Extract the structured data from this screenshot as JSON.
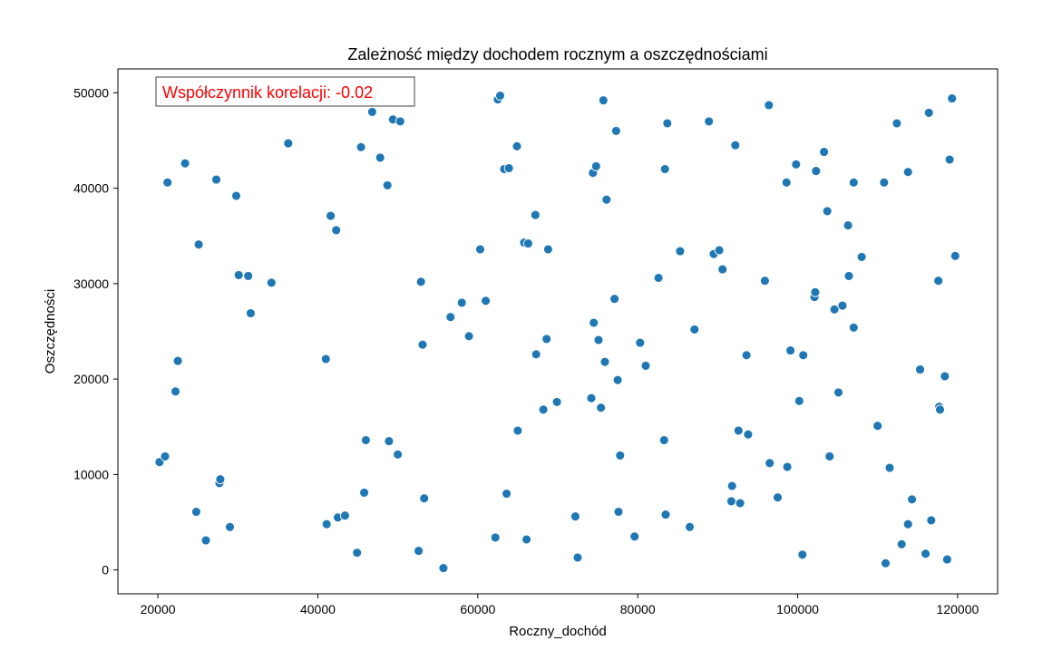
{
  "chart_data": {
    "type": "scatter",
    "title": "Zależność między dochodem rocznym a oszczędnościami",
    "xlabel": "Roczny_dochód",
    "ylabel": "Oszczędności",
    "xlim": [
      15000,
      125000
    ],
    "ylim": [
      -2500,
      52500
    ],
    "xticks": [
      20000,
      40000,
      60000,
      80000,
      100000,
      120000
    ],
    "yticks": [
      0,
      10000,
      20000,
      30000,
      40000,
      50000
    ],
    "grid": false,
    "annotation": {
      "text": "Współczynnik korelacji: -0.02",
      "color": "#ff0000"
    },
    "marker_color": "#1f77b4",
    "points": [
      [
        20200,
        11300
      ],
      [
        20900,
        11900
      ],
      [
        21200,
        40600
      ],
      [
        22200,
        18700
      ],
      [
        22500,
        21900
      ],
      [
        23400,
        42600
      ],
      [
        24800,
        6100
      ],
      [
        25100,
        34100
      ],
      [
        26000,
        3100
      ],
      [
        27300,
        40900
      ],
      [
        27700,
        9100
      ],
      [
        27800,
        9500
      ],
      [
        29000,
        4500
      ],
      [
        29800,
        39200
      ],
      [
        30100,
        30900
      ],
      [
        31300,
        30800
      ],
      [
        31600,
        26900
      ],
      [
        34200,
        30100
      ],
      [
        36300,
        44700
      ],
      [
        41000,
        22100
      ],
      [
        41100,
        4800
      ],
      [
        41600,
        37100
      ],
      [
        42300,
        35600
      ],
      [
        42500,
        5500
      ],
      [
        43400,
        5700
      ],
      [
        44900,
        1800
      ],
      [
        45400,
        44300
      ],
      [
        45800,
        8100
      ],
      [
        46000,
        13600
      ],
      [
        46800,
        48000
      ],
      [
        47800,
        43200
      ],
      [
        48700,
        40300
      ],
      [
        48900,
        13500
      ],
      [
        49400,
        47200
      ],
      [
        50000,
        12100
      ],
      [
        50300,
        47000
      ],
      [
        52600,
        2000
      ],
      [
        52900,
        30200
      ],
      [
        53100,
        23600
      ],
      [
        53300,
        7500
      ],
      [
        55700,
        200
      ],
      [
        56600,
        26500
      ],
      [
        58000,
        28000
      ],
      [
        58900,
        24500
      ],
      [
        60300,
        33600
      ],
      [
        61000,
        28200
      ],
      [
        62200,
        3400
      ],
      [
        62500,
        49300
      ],
      [
        62800,
        49700
      ],
      [
        63300,
        42000
      ],
      [
        63600,
        8000
      ],
      [
        63900,
        42100
      ],
      [
        64900,
        44400
      ],
      [
        65000,
        14600
      ],
      [
        65800,
        34300
      ],
      [
        66100,
        3200
      ],
      [
        66300,
        34200
      ],
      [
        67200,
        37200
      ],
      [
        67300,
        22600
      ],
      [
        68200,
        16800
      ],
      [
        68600,
        24200
      ],
      [
        68800,
        33600
      ],
      [
        69900,
        17600
      ],
      [
        72200,
        5600
      ],
      [
        72500,
        1300
      ],
      [
        74200,
        18000
      ],
      [
        74400,
        41600
      ],
      [
        74500,
        25900
      ],
      [
        74800,
        42300
      ],
      [
        75100,
        24100
      ],
      [
        75400,
        17000
      ],
      [
        75700,
        49200
      ],
      [
        75900,
        21800
      ],
      [
        76100,
        38800
      ],
      [
        77100,
        28400
      ],
      [
        77300,
        46000
      ],
      [
        77500,
        19900
      ],
      [
        77600,
        6100
      ],
      [
        77800,
        12000
      ],
      [
        79600,
        3500
      ],
      [
        80300,
        23800
      ],
      [
        81000,
        21400
      ],
      [
        82600,
        30600
      ],
      [
        83300,
        13600
      ],
      [
        83400,
        42000
      ],
      [
        83500,
        5800
      ],
      [
        83700,
        46800
      ],
      [
        85300,
        33400
      ],
      [
        86500,
        4500
      ],
      [
        87100,
        25200
      ],
      [
        88900,
        47000
      ],
      [
        89500,
        33100
      ],
      [
        90200,
        33500
      ],
      [
        90600,
        31500
      ],
      [
        91700,
        7200
      ],
      [
        91800,
        8800
      ],
      [
        92200,
        44500
      ],
      [
        92600,
        14600
      ],
      [
        92800,
        7000
      ],
      [
        93600,
        22500
      ],
      [
        93800,
        14200
      ],
      [
        95900,
        30300
      ],
      [
        96400,
        48700
      ],
      [
        96500,
        11200
      ],
      [
        97500,
        7600
      ],
      [
        98600,
        40600
      ],
      [
        98700,
        10800
      ],
      [
        99100,
        23000
      ],
      [
        99800,
        42500
      ],
      [
        100200,
        17700
      ],
      [
        100600,
        1600
      ],
      [
        100700,
        22500
      ],
      [
        102100,
        28600
      ],
      [
        102200,
        29100
      ],
      [
        102300,
        41800
      ],
      [
        103300,
        43800
      ],
      [
        103700,
        37600
      ],
      [
        104000,
        11900
      ],
      [
        104600,
        27300
      ],
      [
        105100,
        18600
      ],
      [
        105600,
        27700
      ],
      [
        106300,
        36100
      ],
      [
        106400,
        30800
      ],
      [
        107000,
        25400
      ],
      [
        107000,
        40600
      ],
      [
        108000,
        32800
      ],
      [
        110000,
        15100
      ],
      [
        110800,
        40600
      ],
      [
        111000,
        700
      ],
      [
        111500,
        10700
      ],
      [
        112400,
        46800
      ],
      [
        113000,
        2700
      ],
      [
        113800,
        41700
      ],
      [
        113800,
        4800
      ],
      [
        114300,
        7400
      ],
      [
        115300,
        21000
      ],
      [
        116000,
        1700
      ],
      [
        116400,
        47900
      ],
      [
        116700,
        5200
      ],
      [
        117600,
        30300
      ],
      [
        117700,
        17100
      ],
      [
        117800,
        16800
      ],
      [
        118400,
        20300
      ],
      [
        118700,
        1100
      ],
      [
        119000,
        43000
      ],
      [
        119300,
        49400
      ],
      [
        119700,
        32900
      ]
    ]
  }
}
